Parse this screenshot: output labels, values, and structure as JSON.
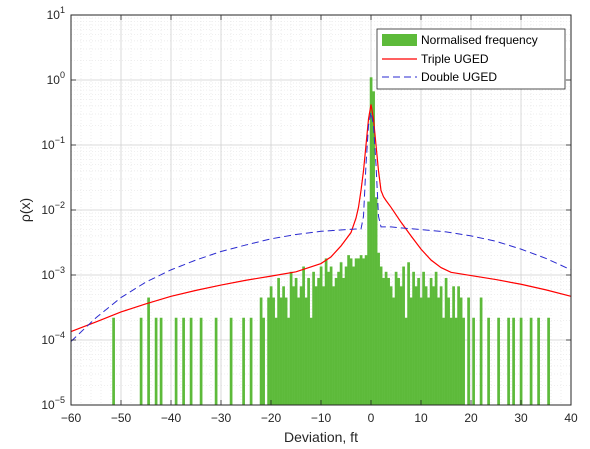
{
  "chart_data": {
    "type": "bar",
    "xlabel": "Deviation, ft",
    "ylabel": "ρ(x)",
    "xlim": [
      -60,
      40
    ],
    "ylim": [
      1e-05,
      10
    ],
    "yscale": "log",
    "grid": "major and minor, dotted",
    "legend_placement": "top-right",
    "x_ticks": [
      "−60",
      "−50",
      "−40",
      "−30",
      "−20",
      "−10",
      "0",
      "10",
      "20",
      "30",
      "40"
    ],
    "y_ticks": [
      {
        "base": "10",
        "exp": "1"
      },
      {
        "base": "10",
        "exp": "0"
      },
      {
        "base": "10",
        "exp": "−1"
      },
      {
        "base": "10",
        "exp": "−2"
      },
      {
        "base": "10",
        "exp": "−3"
      },
      {
        "base": "10",
        "exp": "−4"
      },
      {
        "base": "10",
        "exp": "−5"
      }
    ],
    "colors": {
      "bars": "#5dba3a",
      "triple": "#ff0000",
      "double": "#2a2ad0"
    },
    "histogram": {
      "name": "Normalised frequency",
      "bins": [
        [
          -51.5,
          0.00022
        ],
        [
          -46,
          0.00022
        ],
        [
          -44.5,
          0.00045
        ],
        [
          -43,
          0.00022
        ],
        [
          -42,
          0.00022
        ],
        [
          -39,
          0.00022
        ],
        [
          -37.5,
          0.00022
        ],
        [
          -36,
          0.00022
        ],
        [
          -34,
          0.00022
        ],
        [
          -31,
          0.00022
        ],
        [
          -28,
          0.00022
        ],
        [
          -25.5,
          0.00022
        ],
        [
          -24,
          0.00022
        ],
        [
          -22,
          0.00045
        ],
        [
          -21.5,
          0.00022
        ],
        [
          -20.5,
          0.00045
        ],
        [
          -20,
          0.00067
        ],
        [
          -19.5,
          0.00045
        ],
        [
          -19,
          0.00022
        ],
        [
          -18.5,
          0.0009
        ],
        [
          -18,
          0.00045
        ],
        [
          -17.5,
          0.00067
        ],
        [
          -17,
          0.00045
        ],
        [
          -16.5,
          0.00022
        ],
        [
          -16,
          0.00112
        ],
        [
          -15.5,
          0.00067
        ],
        [
          -15,
          0.0009
        ],
        [
          -14.5,
          0.00045
        ],
        [
          -14,
          0.00067
        ],
        [
          -13.5,
          0.00135
        ],
        [
          -13,
          0.00045
        ],
        [
          -12.5,
          0.0009
        ],
        [
          -12,
          0.00022
        ],
        [
          -11.5,
          0.00112
        ],
        [
          -11,
          0.00067
        ],
        [
          -10.5,
          0.0009
        ],
        [
          -10,
          0.00135
        ],
        [
          -9.5,
          0.00067
        ],
        [
          -9,
          0.0018
        ],
        [
          -8.5,
          0.00112
        ],
        [
          -8,
          0.00135
        ],
        [
          -7.5,
          0.00067
        ],
        [
          -7,
          0.0009
        ],
        [
          -6.5,
          0.00112
        ],
        [
          -6,
          0.00157
        ],
        [
          -5.5,
          0.0009
        ],
        [
          -5,
          0.00135
        ],
        [
          -4.5,
          0.00202
        ],
        [
          -4,
          0.0018
        ],
        [
          -3.5,
          0.00135
        ],
        [
          -3,
          0.0018
        ],
        [
          -2.5,
          0.0018
        ],
        [
          -2,
          0.00202
        ],
        [
          -1.5,
          0.0018
        ],
        [
          -1,
          0.00202
        ],
        [
          -0.5,
          0.0135
        ],
        [
          0,
          1.1
        ],
        [
          0.5,
          0.67
        ],
        [
          1,
          0.0157
        ],
        [
          1.5,
          0.0022
        ],
        [
          2,
          0.00135
        ],
        [
          2.5,
          0.0009
        ],
        [
          3,
          0.00112
        ],
        [
          3.5,
          0.0009
        ],
        [
          4,
          0.00067
        ],
        [
          4.5,
          0.00045
        ],
        [
          5,
          0.00112
        ],
        [
          5.5,
          0.0009
        ],
        [
          6,
          0.00067
        ],
        [
          6.5,
          0.00135
        ],
        [
          7,
          0.00022
        ],
        [
          7.5,
          0.00157
        ],
        [
          8,
          0.00045
        ],
        [
          8.5,
          0.00112
        ],
        [
          9,
          0.00067
        ],
        [
          9.5,
          0.0009
        ],
        [
          10,
          0.00045
        ],
        [
          10.5,
          0.00112
        ],
        [
          11,
          0.00067
        ],
        [
          11.5,
          0.00045
        ],
        [
          12,
          0.0009
        ],
        [
          12.5,
          0.00067
        ],
        [
          13,
          0.00112
        ],
        [
          13.5,
          0.00045
        ],
        [
          14,
          0.00067
        ],
        [
          14.5,
          0.00022
        ],
        [
          15,
          0.0009
        ],
        [
          15.5,
          0.00045
        ],
        [
          16,
          0.00022
        ],
        [
          16.5,
          0.00067
        ],
        [
          17,
          0.00022
        ],
        [
          17.5,
          0.00067
        ],
        [
          18,
          0.00045
        ],
        [
          18.5,
          0.00022
        ],
        [
          19.5,
          0.00045
        ],
        [
          20.5,
          0.00022
        ],
        [
          22,
          0.00045
        ],
        [
          23.5,
          0.00022
        ],
        [
          25.5,
          0.00022
        ],
        [
          27.5,
          0.00022
        ],
        [
          28.5,
          0.00022
        ],
        [
          30,
          0.00022
        ],
        [
          32,
          0.00022
        ],
        [
          33.5,
          0.00022
        ],
        [
          35.5,
          0.00022
        ]
      ]
    },
    "series": [
      {
        "name": "Triple UGED",
        "style": "solid",
        "points": [
          [
            -60,
            0.000135
          ],
          [
            -55,
            0.00019
          ],
          [
            -50,
            0.00027
          ],
          [
            -45,
            0.00036
          ],
          [
            -40,
            0.00047
          ],
          [
            -35,
            0.00058
          ],
          [
            -30,
            0.0007
          ],
          [
            -25,
            0.00083
          ],
          [
            -20,
            0.00096
          ],
          [
            -15,
            0.00112
          ],
          [
            -10,
            0.0015
          ],
          [
            -8,
            0.0019
          ],
          [
            -6,
            0.0028
          ],
          [
            -4,
            0.0045
          ],
          [
            -3,
            0.0075
          ],
          [
            -2.5,
            0.011
          ],
          [
            -2,
            0.02
          ],
          [
            -1.5,
            0.04
          ],
          [
            -1,
            0.1
          ],
          [
            -0.5,
            0.25
          ],
          [
            0,
            0.42
          ],
          [
            0.5,
            0.25
          ],
          [
            1,
            0.1
          ],
          [
            1.5,
            0.04
          ],
          [
            2,
            0.02
          ],
          [
            2.5,
            0.016
          ],
          [
            3,
            0.014
          ],
          [
            4,
            0.011
          ],
          [
            6,
            0.0065
          ],
          [
            8,
            0.004
          ],
          [
            10,
            0.0025
          ],
          [
            12,
            0.0017
          ],
          [
            14,
            0.0013
          ],
          [
            16,
            0.0011
          ],
          [
            20,
            0.00098
          ],
          [
            25,
            0.00085
          ],
          [
            30,
            0.00072
          ],
          [
            35,
            0.00059
          ],
          [
            40,
            0.00047
          ]
        ]
      },
      {
        "name": "Double UGED",
        "style": "dashed",
        "points": [
          [
            -60,
            9.5e-05
          ],
          [
            -55,
            0.00022
          ],
          [
            -50,
            0.00045
          ],
          [
            -45,
            0.00078
          ],
          [
            -40,
            0.0012
          ],
          [
            -35,
            0.0017
          ],
          [
            -30,
            0.0023
          ],
          [
            -25,
            0.0029
          ],
          [
            -20,
            0.0036
          ],
          [
            -15,
            0.0042
          ],
          [
            -10,
            0.0047
          ],
          [
            -5,
            0.005
          ],
          [
            -3,
            0.0051
          ],
          [
            -2,
            0.0051
          ],
          [
            -1.5,
            0.008
          ],
          [
            -1,
            0.05
          ],
          [
            -0.5,
            0.2
          ],
          [
            0,
            0.32
          ],
          [
            0.5,
            0.2
          ],
          [
            1,
            0.05
          ],
          [
            1.5,
            0.008
          ],
          [
            2,
            0.0055
          ],
          [
            4,
            0.0055
          ],
          [
            6,
            0.0053
          ],
          [
            10,
            0.005
          ],
          [
            15,
            0.0046
          ],
          [
            20,
            0.004
          ],
          [
            25,
            0.0033
          ],
          [
            30,
            0.0025
          ],
          [
            35,
            0.0018
          ],
          [
            40,
            0.0012
          ]
        ]
      }
    ]
  }
}
